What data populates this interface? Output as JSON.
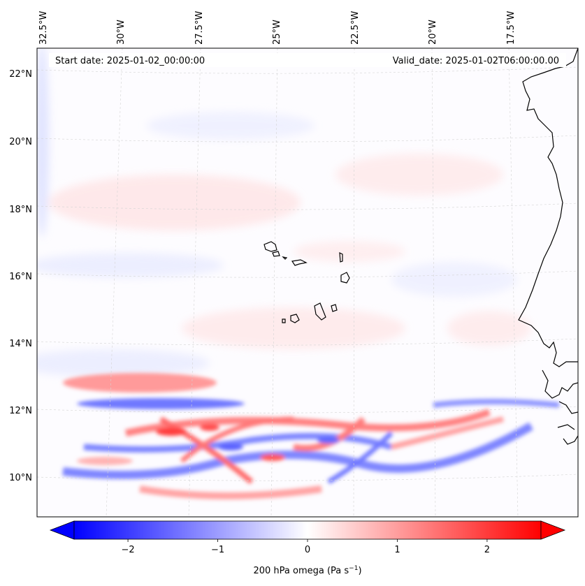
{
  "map": {
    "start_date": "Start date: 2025-01-02_00:00:00",
    "valid_date": "Valid_date: 2025-01-02T06:00:00.00",
    "lon_labels": [
      "32.5°W",
      "30°W",
      "27.5°W",
      "25°W",
      "22.5°W",
      "20°W",
      "17.5°W"
    ],
    "lat_labels": [
      "22°N",
      "20°N",
      "18°N",
      "16°N",
      "14°N",
      "12°N",
      "10°N"
    ],
    "coastline_color": "#000000",
    "gridline_color": "#bfbfbf"
  },
  "colorbar": {
    "label_main": "200 hPa omega (Pa s",
    "label_exp": "−1",
    "label_close": ")",
    "ticks": [
      "−2",
      "−1",
      "0",
      "1",
      "2"
    ],
    "tick_values": [
      -2,
      -1,
      0,
      1,
      2
    ],
    "range": [
      -2.6,
      2.6
    ],
    "colormap": "bwr",
    "low_color": "#0000ff",
    "mid_color": "#ffffff",
    "high_color": "#ff0000",
    "extend": "both"
  }
}
